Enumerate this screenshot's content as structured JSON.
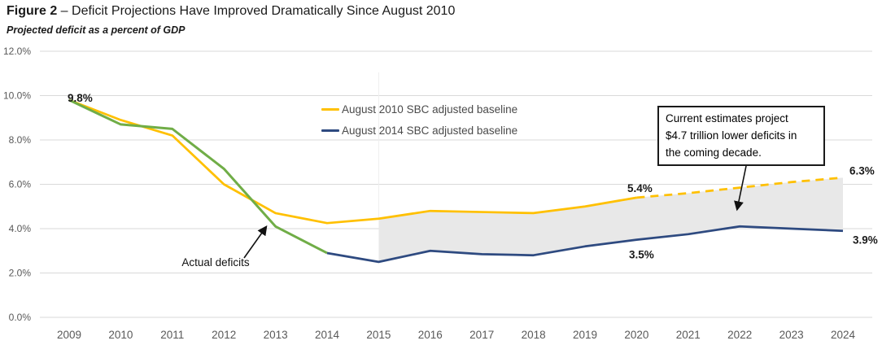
{
  "header": {
    "title_prefix": "Figure 2",
    "title_rest": " – Deficit Projections Have Improved Dramatically Since August 2010",
    "subtitle": "Projected deficit as a percent of GDP"
  },
  "chart_data": {
    "type": "line",
    "title": "Deficit Projections Have Improved Dramatically Since August 2010",
    "ylabel": "Projected deficit as a percent of GDP",
    "xlabel": "",
    "grid": true,
    "ylim": [
      0,
      12
    ],
    "y_ticks": [
      "12.0%",
      "10.0%",
      "8.0%",
      "6.0%",
      "4.0%",
      "2.0%",
      "0.0%"
    ],
    "y_tick_values": [
      12,
      10,
      8,
      6,
      4,
      2,
      0
    ],
    "x": [
      2009,
      2010,
      2011,
      2012,
      2013,
      2014,
      2015,
      2016,
      2017,
      2018,
      2019,
      2020,
      2021,
      2022,
      2023,
      2024
    ],
    "series": [
      {
        "name": "August 2010 SBC adjusted baseline",
        "color": "#FFC000",
        "style": "solid-then-dashed",
        "dashed_from_year": 2020,
        "start_year": 2009,
        "values": [
          9.8,
          8.9,
          8.2,
          6.0,
          4.7,
          4.25,
          4.45,
          4.8,
          4.75,
          4.7,
          5.0,
          5.4,
          5.6,
          5.85,
          6.1,
          6.3
        ]
      },
      {
        "name": "August 2014 SBC adjusted baseline",
        "color": "#2E4A80",
        "style": "solid",
        "start_year": 2014,
        "values": [
          2.9,
          2.5,
          3.0,
          2.85,
          2.8,
          3.2,
          3.5,
          3.75,
          4.1,
          4.0,
          3.9
        ]
      },
      {
        "name": "Actual deficits",
        "color": "#70AD47",
        "style": "solid",
        "start_year": 2009,
        "in_legend": false,
        "values": [
          9.8,
          8.7,
          8.5,
          6.7,
          4.1,
          2.9
        ]
      }
    ],
    "shaded_area": {
      "between_series": [
        "August 2010 SBC adjusted baseline",
        "August 2014 SBC adjusted baseline"
      ],
      "from_year": 2015,
      "to_year": 2024,
      "fill": "#E8E8E8"
    },
    "point_labels": [
      {
        "text": "9.8%",
        "year": 2009,
        "value": 9.8,
        "series": "Actual deficits"
      },
      {
        "text": "5.4%",
        "year": 2020,
        "value": 5.4,
        "series": "August 2010 SBC adjusted baseline"
      },
      {
        "text": "6.3%",
        "year": 2024,
        "value": 6.3,
        "series": "August 2010 SBC adjusted baseline"
      },
      {
        "text": "3.5%",
        "year": 2020,
        "value": 3.5,
        "series": "August 2014 SBC adjusted baseline"
      },
      {
        "text": "3.9%",
        "year": 2024,
        "value": 3.9,
        "series": "August 2014 SBC adjusted baseline"
      }
    ],
    "legend_position": "top-center"
  },
  "legend": {
    "items": [
      {
        "label": "August 2010 SBC adjusted baseline",
        "color": "#FFC000"
      },
      {
        "label": "August 2014 SBC adjusted baseline",
        "color": "#2E4A80"
      }
    ]
  },
  "annotations": {
    "actual_deficits_label": "Actual deficits",
    "callout_lines": [
      "Current estimates project",
      "$4.7 trillion lower deficits in",
      "the coming decade."
    ],
    "callout_text": "Current estimates project $4.7 trillion lower deficits in the coming decade."
  },
  "colors": {
    "gridline": "#D9D9D9",
    "axis_text": "#595959",
    "area_fill": "#E8E8E8",
    "annotation_text": "#111111"
  }
}
